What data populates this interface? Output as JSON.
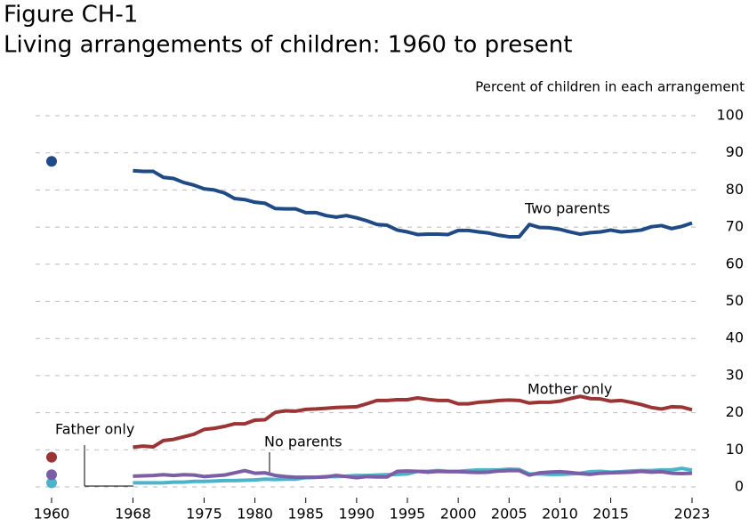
{
  "chart_data": {
    "type": "line",
    "title": "Figure CH-1",
    "subtitle": "Living arrangements of children: 1960 to present",
    "y_axis_label": "Percent of children in each arrangement",
    "x": [
      1960,
      1961,
      1962,
      1963,
      1964,
      1965,
      1966,
      1967,
      1968,
      1969,
      1970,
      1971,
      1972,
      1973,
      1974,
      1975,
      1976,
      1977,
      1978,
      1979,
      1980,
      1981,
      1982,
      1983,
      1984,
      1985,
      1986,
      1987,
      1988,
      1989,
      1990,
      1991,
      1992,
      1993,
      1994,
      1995,
      1996,
      1997,
      1998,
      1999,
      2000,
      2001,
      2002,
      2003,
      2004,
      2005,
      2006,
      2007,
      2008,
      2009,
      2010,
      2011,
      2012,
      2013,
      2014,
      2015,
      2016,
      2017,
      2018,
      2019,
      2020,
      2021,
      2022,
      2023
    ],
    "series": [
      {
        "name": "Two parents",
        "color": "#1f4a85",
        "values": [
          87.7,
          null,
          null,
          null,
          null,
          null,
          null,
          null,
          85.2,
          85,
          85,
          83.4,
          83.1,
          82,
          81.3,
          80.3,
          80,
          79.2,
          77.7,
          77.4,
          76.7,
          76.4,
          75,
          74.9,
          74.9,
          73.9,
          73.9,
          73.1,
          72.7,
          73.1,
          72.5,
          71.7,
          70.7,
          70.5,
          69.2,
          68.7,
          68,
          68.1,
          68.1,
          68,
          69.1,
          69.1,
          68.7,
          68.4,
          67.8,
          67.4,
          67.4,
          70.7,
          69.9,
          69.8,
          69.4,
          68.7,
          68.1,
          68.5,
          68.7,
          69.2,
          68.7,
          68.9,
          69.2,
          70.1,
          70.4,
          69.6,
          70.2,
          71.1
        ]
      },
      {
        "name": "Mother only",
        "color": "#9b3535",
        "values": [
          8,
          null,
          null,
          null,
          null,
          null,
          null,
          null,
          10.7,
          11,
          10.8,
          12.5,
          12.8,
          13.5,
          14.2,
          15.5,
          15.8,
          16.3,
          17,
          17,
          18,
          18.1,
          20.1,
          20.5,
          20.4,
          20.9,
          21,
          21.2,
          21.4,
          21.5,
          21.6,
          22.4,
          23.3,
          23.3,
          23.5,
          23.5,
          24,
          23.6,
          23.3,
          23.3,
          22.4,
          22.4,
          22.8,
          23,
          23.3,
          23.4,
          23.3,
          22.6,
          22.8,
          22.8,
          23.1,
          23.8,
          24.4,
          23.8,
          23.7,
          23.1,
          23.3,
          22.8,
          22.2,
          21.4,
          21,
          21.6,
          21.5,
          20.8
        ]
      },
      {
        "name": "Father only",
        "color": "#4bb4cb",
        "values": [
          1.1,
          null,
          null,
          null,
          null,
          null,
          null,
          null,
          1.1,
          1.1,
          1.1,
          1.1,
          1.3,
          1.3,
          1.5,
          1.5,
          1.6,
          1.7,
          1.7,
          1.8,
          1.9,
          2.1,
          2,
          2.1,
          2.1,
          2.5,
          2.6,
          2.8,
          2.8,
          2.9,
          3.1,
          3.1,
          3.2,
          3.3,
          3.4,
          3.5,
          4.2,
          4.2,
          4.4,
          4.2,
          4.2,
          4.4,
          4.6,
          4.6,
          4.6,
          4.8,
          4.7,
          3.5,
          3.5,
          3.4,
          3.4,
          3.5,
          3.7,
          4.1,
          4.2,
          4,
          4.1,
          4.3,
          4.4,
          4.4,
          4.6,
          4.6,
          5,
          4.5
        ]
      },
      {
        "name": "No parents",
        "color": "#7b5ea6",
        "values": [
          3.3,
          null,
          null,
          null,
          null,
          null,
          null,
          null,
          2.9,
          3,
          3.1,
          3.3,
          3.1,
          3.3,
          3.2,
          2.8,
          3,
          3.2,
          3.8,
          4.4,
          3.7,
          3.8,
          3.1,
          2.8,
          2.6,
          2.6,
          2.6,
          2.7,
          3.1,
          2.8,
          2.5,
          2.8,
          2.7,
          2.7,
          4.2,
          4.3,
          4.2,
          4,
          4.2,
          4.1,
          4.1,
          4,
          3.9,
          4,
          4.3,
          4.4,
          4.4,
          3.2,
          3.8,
          4,
          4.1,
          3.9,
          3.6,
          3.4,
          3.7,
          3.8,
          3.9,
          4,
          4.2,
          4,
          4.1,
          3.7,
          3.6,
          3.7
        ]
      }
    ],
    "xlim": [
      1960,
      2023
    ],
    "xticks": [
      1960,
      1968,
      1975,
      1980,
      1985,
      1990,
      1995,
      2000,
      2005,
      2010,
      2015,
      2023
    ],
    "ylim": [
      0,
      100
    ],
    "yticks": [
      0,
      10,
      20,
      30,
      40,
      50,
      60,
      70,
      80,
      90,
      100
    ],
    "grid": true
  }
}
